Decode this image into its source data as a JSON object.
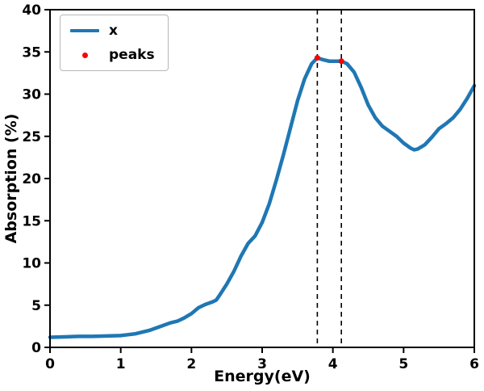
{
  "chart_data": {
    "type": "line",
    "title": "",
    "xlabel": "Energy(eV)",
    "ylabel": "Absorption (%)",
    "xlim": [
      0,
      6
    ],
    "ylim": [
      0,
      40
    ],
    "xticks": [
      0,
      1,
      2,
      3,
      4,
      5,
      6
    ],
    "yticks": [
      0,
      5,
      10,
      15,
      20,
      25,
      30,
      35,
      40
    ],
    "grid": false,
    "legend_position": "upper left",
    "series": [
      {
        "name": "x",
        "color": "#1f77b4",
        "x": [
          0,
          0.2,
          0.4,
          0.6,
          0.8,
          1.0,
          1.1,
          1.2,
          1.3,
          1.4,
          1.5,
          1.6,
          1.7,
          1.8,
          1.9,
          2.0,
          2.1,
          2.2,
          2.3,
          2.35,
          2.4,
          2.5,
          2.6,
          2.7,
          2.8,
          2.9,
          3.0,
          3.1,
          3.2,
          3.3,
          3.4,
          3.5,
          3.6,
          3.7,
          3.78,
          3.85,
          3.95,
          4.05,
          4.12,
          4.2,
          4.3,
          4.4,
          4.5,
          4.6,
          4.7,
          4.8,
          4.9,
          5.0,
          5.1,
          5.15,
          5.2,
          5.3,
          5.4,
          5.5,
          5.6,
          5.7,
          5.8,
          5.9,
          6.0
        ],
        "y": [
          1.2,
          1.25,
          1.3,
          1.3,
          1.35,
          1.4,
          1.5,
          1.6,
          1.8,
          2.0,
          2.3,
          2.6,
          2.9,
          3.1,
          3.5,
          4.0,
          4.7,
          5.1,
          5.4,
          5.6,
          6.2,
          7.5,
          9.0,
          10.8,
          12.3,
          13.2,
          14.8,
          17.0,
          19.8,
          22.8,
          26.0,
          29.2,
          31.8,
          33.6,
          34.3,
          34.1,
          33.9,
          33.9,
          33.9,
          33.6,
          32.6,
          30.8,
          28.7,
          27.2,
          26.2,
          25.6,
          25.0,
          24.2,
          23.6,
          23.4,
          23.5,
          24.0,
          24.9,
          25.9,
          26.5,
          27.2,
          28.2,
          29.5,
          31.0
        ]
      }
    ],
    "peaks": {
      "name": "peaks",
      "color": "#ff0000",
      "points": [
        [
          3.78,
          34.3
        ],
        [
          4.12,
          33.9
        ]
      ]
    },
    "vlines": {
      "color": "#000000",
      "style": "dashed",
      "x": [
        3.78,
        4.12
      ]
    }
  },
  "colors": {
    "curve": "#1f77b4",
    "peaks": "#ff0000",
    "axes": "#000000",
    "background": "#ffffff"
  }
}
